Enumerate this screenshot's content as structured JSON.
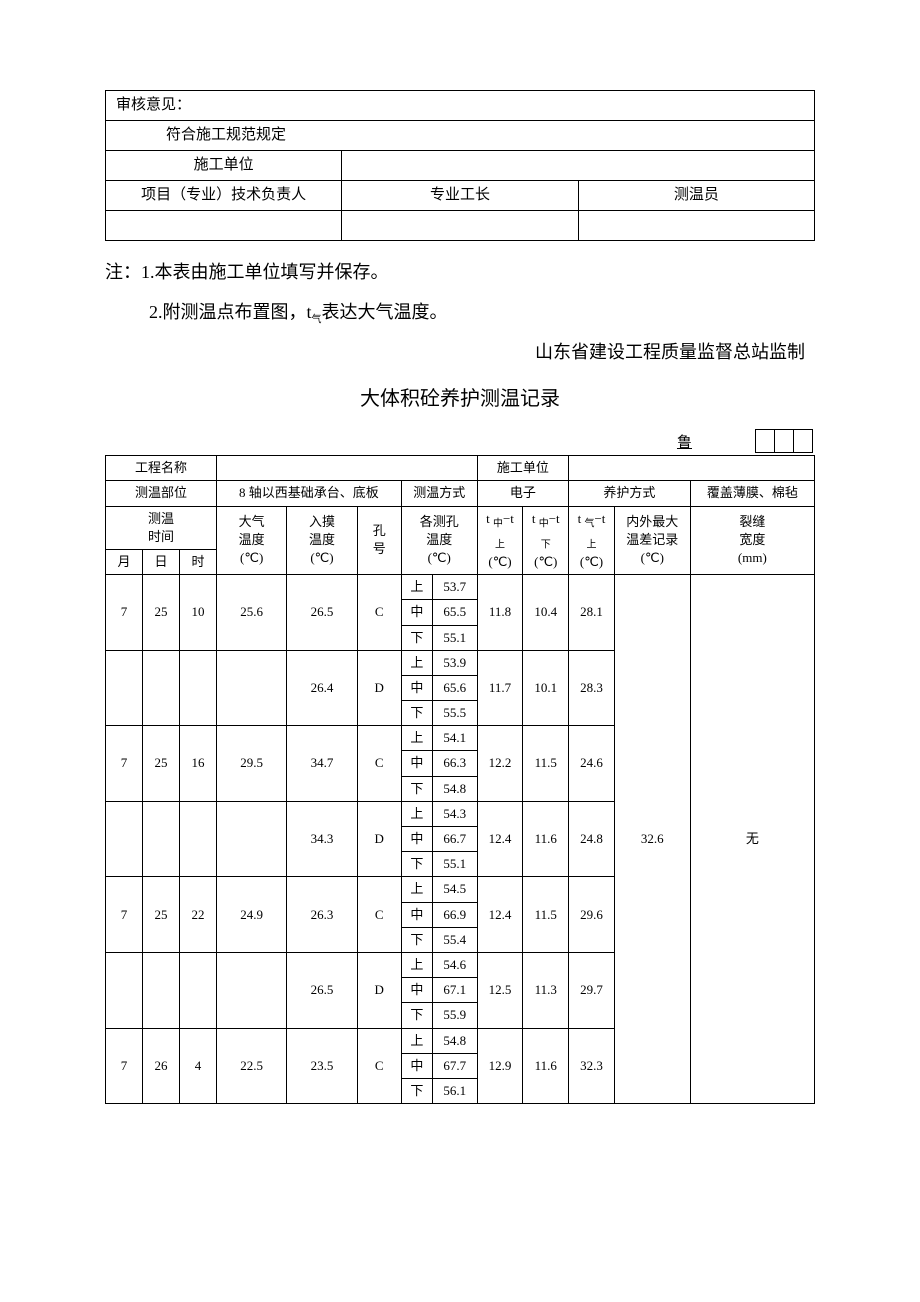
{
  "topTable": {
    "reviewLabel": "审核意见：",
    "reviewContent": "符合施工规范规定",
    "constructionUnit": "施工单位",
    "projectLeader": "项目（专业）技术负责人",
    "foreman": "专业工长",
    "recorder": "测温员"
  },
  "notes": {
    "line1": "注：1.本表由施工单位填写并保存。",
    "line2": "2.附测温点布置图，t",
    "line2sub": "气",
    "line2tail": "表达大气温度。"
  },
  "supervisor": "山东省建设工程质量监督总站监制",
  "title": "大体积砼养护测温记录",
  "luChar": "鲁",
  "infoRow": {
    "projectNameLabel": "工程名称",
    "projectNameVal": "",
    "constructionUnitLabel": "施工单位",
    "constructionUnitVal": "",
    "positionLabel": "测温部位",
    "positionVal": "8 轴以西基础承台、底板",
    "methodLabel": "测温方式",
    "methodVal": "电子",
    "curingLabel": "养护方式",
    "curingVal": "覆盖薄膜、棉毡"
  },
  "headers": {
    "time": "测温\n时间",
    "month": "月",
    "day": "日",
    "hour": "时",
    "airTemp": "大气\n温度\n(℃)",
    "placeTemp": "入摸\n温度\n(℃)",
    "holeNo": "孔\n号",
    "holeTemp": "各测孔\n温度\n(℃)",
    "diff1": "t 中−t\n上\n(℃)",
    "diff2": "t 中−t\n下\n(℃)",
    "diff3": "t 气−t\n上\n(℃)",
    "maxDiff": "内外最大\n温差记录\n(℃)",
    "crack": "裂缝\n宽度\n(mm)"
  },
  "posLabels": {
    "up": "上",
    "mid": "中",
    "down": "下"
  },
  "maxDiffVal": "32.6",
  "crackVal": "无",
  "rows": [
    {
      "m": "7",
      "d": "25",
      "h": "10",
      "air": "25.6",
      "place": "26.5",
      "hole": "C",
      "u": "53.7",
      "mi": "65.5",
      "do": "55.1",
      "d1": "11.8",
      "d2": "10.4",
      "d3": "28.1"
    },
    {
      "m": "",
      "d": "",
      "h": "",
      "air": "",
      "place": "26.4",
      "hole": "D",
      "u": "53.9",
      "mi": "65.6",
      "do": "55.5",
      "d1": "11.7",
      "d2": "10.1",
      "d3": "28.3"
    },
    {
      "m": "7",
      "d": "25",
      "h": "16",
      "air": "29.5",
      "place": "34.7",
      "hole": "C",
      "u": "54.1",
      "mi": "66.3",
      "do": "54.8",
      "d1": "12.2",
      "d2": "11.5",
      "d3": "24.6"
    },
    {
      "m": "",
      "d": "",
      "h": "",
      "air": "",
      "place": "34.3",
      "hole": "D",
      "u": "54.3",
      "mi": "66.7",
      "do": "55.1",
      "d1": "12.4",
      "d2": "11.6",
      "d3": "24.8"
    },
    {
      "m": "7",
      "d": "25",
      "h": "22",
      "air": "24.9",
      "place": "26.3",
      "hole": "C",
      "u": "54.5",
      "mi": "66.9",
      "do": "55.4",
      "d1": "12.4",
      "d2": "11.5",
      "d3": "29.6"
    },
    {
      "m": "",
      "d": "",
      "h": "",
      "air": "",
      "place": "26.5",
      "hole": "D",
      "u": "54.6",
      "mi": "67.1",
      "do": "55.9",
      "d1": "12.5",
      "d2": "11.3",
      "d3": "29.7"
    },
    {
      "m": "7",
      "d": "26",
      "h": "4",
      "air": "22.5",
      "place": "23.5",
      "hole": "C",
      "u": "54.8",
      "mi": "67.7",
      "do": "56.1",
      "d1": "12.9",
      "d2": "11.6",
      "d3": "32.3"
    }
  ]
}
